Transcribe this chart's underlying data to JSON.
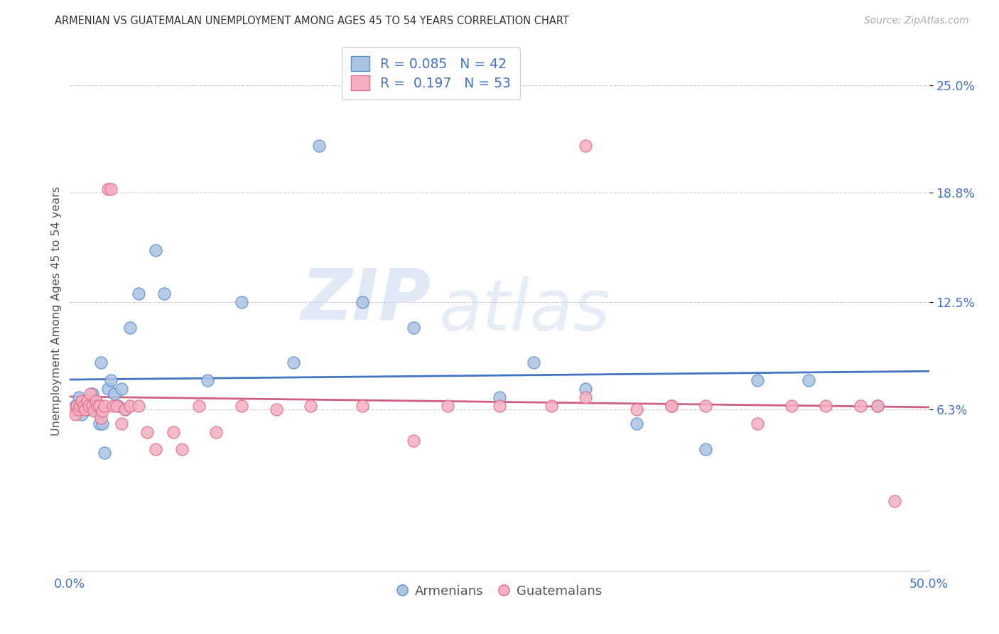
{
  "title": "ARMENIAN VS GUATEMALAN UNEMPLOYMENT AMONG AGES 45 TO 54 YEARS CORRELATION CHART",
  "source": "Source: ZipAtlas.com",
  "ylabel": "Unemployment Among Ages 45 to 54 years",
  "xlim": [
    0.0,
    0.5
  ],
  "ylim": [
    -0.03,
    0.27
  ],
  "yticks": [
    0.063,
    0.125,
    0.188,
    0.25
  ],
  "ytick_labels": [
    "6.3%",
    "12.5%",
    "18.8%",
    "25.0%"
  ],
  "xticks": [
    0.0,
    0.1,
    0.2,
    0.3,
    0.4,
    0.5
  ],
  "xtick_labels": [
    "0.0%",
    "",
    "",
    "",
    "",
    "50.0%"
  ],
  "armenian_color": "#aac4e2",
  "guatemalan_color": "#f5afc0",
  "armenian_edge_color": "#6090d0",
  "guatemalan_edge_color": "#e07090",
  "armenian_line_color": "#4472c4",
  "guatemalan_line_color": "#d06080",
  "armenian_R": 0.085,
  "armenian_N": 42,
  "guatemalan_R": 0.197,
  "guatemalan_N": 53,
  "background_color": "#ffffff",
  "grid_color": "#cccccc",
  "watermark_zip": "ZIP",
  "watermark_atlas": "atlas",
  "armenian_x": [
    0.002,
    0.003,
    0.005,
    0.006,
    0.007,
    0.008,
    0.009,
    0.01,
    0.011,
    0.012,
    0.013,
    0.014,
    0.015,
    0.016,
    0.017,
    0.018,
    0.019,
    0.02,
    0.022,
    0.024,
    0.026,
    0.028,
    0.03,
    0.032,
    0.035,
    0.04,
    0.05,
    0.055,
    0.08,
    0.1,
    0.13,
    0.145,
    0.17,
    0.2,
    0.25,
    0.27,
    0.3,
    0.33,
    0.37,
    0.4,
    0.43,
    0.47
  ],
  "armenian_y": [
    0.063,
    0.065,
    0.07,
    0.063,
    0.06,
    0.065,
    0.068,
    0.063,
    0.068,
    0.065,
    0.072,
    0.065,
    0.068,
    0.062,
    0.055,
    0.09,
    0.055,
    0.038,
    0.075,
    0.08,
    0.072,
    0.065,
    0.075,
    0.063,
    0.11,
    0.13,
    0.155,
    0.13,
    0.08,
    0.125,
    0.09,
    0.215,
    0.125,
    0.11,
    0.07,
    0.09,
    0.075,
    0.055,
    0.04,
    0.08,
    0.08,
    0.065
  ],
  "guatemalan_x": [
    0.002,
    0.003,
    0.004,
    0.005,
    0.006,
    0.007,
    0.008,
    0.009,
    0.01,
    0.011,
    0.012,
    0.013,
    0.014,
    0.015,
    0.016,
    0.017,
    0.018,
    0.019,
    0.02,
    0.022,
    0.024,
    0.025,
    0.027,
    0.03,
    0.032,
    0.035,
    0.04,
    0.045,
    0.05,
    0.06,
    0.065,
    0.075,
    0.085,
    0.1,
    0.12,
    0.14,
    0.17,
    0.2,
    0.22,
    0.25,
    0.28,
    0.3,
    0.33,
    0.35,
    0.37,
    0.4,
    0.42,
    0.44,
    0.46,
    0.48,
    0.3,
    0.35,
    0.47
  ],
  "guatemalan_y": [
    0.063,
    0.06,
    0.065,
    0.063,
    0.065,
    0.068,
    0.065,
    0.063,
    0.068,
    0.065,
    0.072,
    0.065,
    0.062,
    0.068,
    0.065,
    0.065,
    0.058,
    0.062,
    0.065,
    0.19,
    0.19,
    0.065,
    0.065,
    0.055,
    0.063,
    0.065,
    0.065,
    0.05,
    0.04,
    0.05,
    0.04,
    0.065,
    0.05,
    0.065,
    0.063,
    0.065,
    0.065,
    0.045,
    0.065,
    0.065,
    0.065,
    0.07,
    0.063,
    0.065,
    0.065,
    0.055,
    0.065,
    0.065,
    0.065,
    0.01,
    0.215,
    0.065,
    0.065
  ]
}
